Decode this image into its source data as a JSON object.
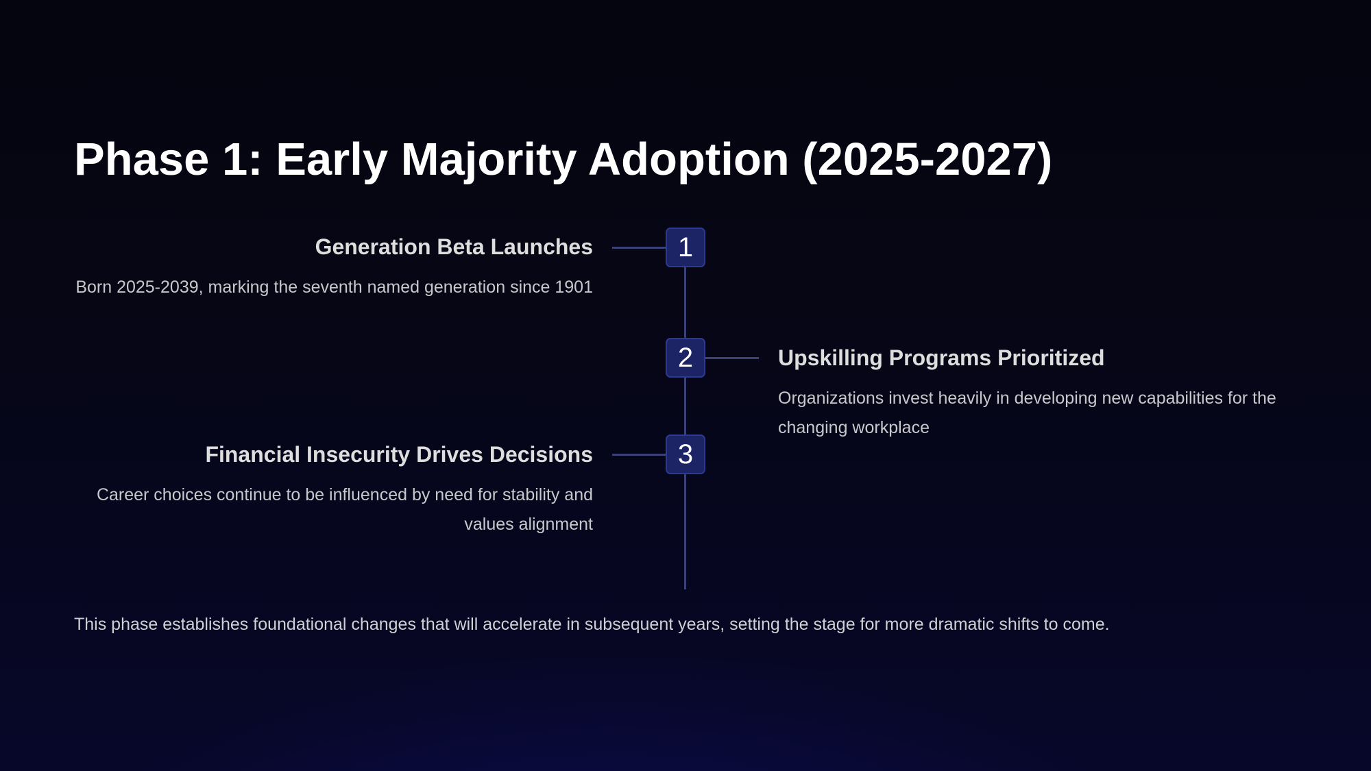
{
  "title": "Phase 1: Early Majority Adoption (2025-2027)",
  "timeline": {
    "items": [
      {
        "number": "1",
        "side": "left",
        "title": "Generation Beta Launches",
        "description": "Born 2025-2039, marking the seventh named generation since 1901"
      },
      {
        "number": "2",
        "side": "right",
        "title": "Upskilling Programs Prioritized",
        "description": "Organizations invest heavily in developing new capabilities for the changing workplace"
      },
      {
        "number": "3",
        "side": "left",
        "title": "Financial Insecurity Drives Decisions",
        "description": "Career choices continue to be influenced by need for stability and values alignment"
      }
    ]
  },
  "footer": "This phase establishes foundational changes that will accelerate in subsequent years, setting the stage for more dramatic shifts to come."
}
